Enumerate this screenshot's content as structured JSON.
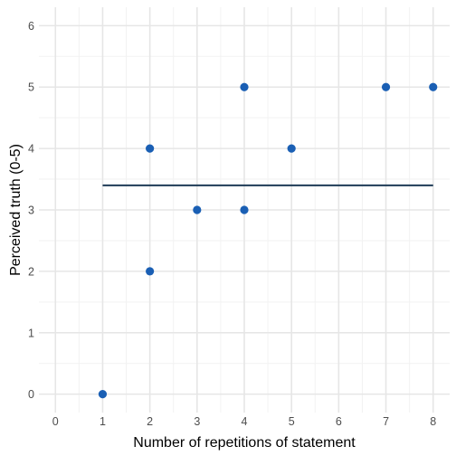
{
  "chart_data": {
    "type": "scatter",
    "xlabel": "Number of repetitions of statement",
    "ylabel": "Perceived truth (0-5)",
    "xlim": [
      -0.35,
      8.35
    ],
    "ylim": [
      -0.3,
      6.3
    ],
    "x_ticks": [
      0,
      1,
      2,
      3,
      4,
      5,
      6,
      7,
      8
    ],
    "y_ticks": [
      0,
      1,
      2,
      3,
      4,
      5,
      6
    ],
    "grid": true,
    "points": [
      {
        "x": 1,
        "y": 0
      },
      {
        "x": 2,
        "y": 2
      },
      {
        "x": 2,
        "y": 4
      },
      {
        "x": 3,
        "y": 3
      },
      {
        "x": 4,
        "y": 3
      },
      {
        "x": 4,
        "y": 5
      },
      {
        "x": 5,
        "y": 4
      },
      {
        "x": 7,
        "y": 5
      },
      {
        "x": 8,
        "y": 5
      }
    ],
    "reference_line": {
      "y": 3.4,
      "x_start": 1,
      "x_end": 8
    },
    "colors": {
      "point": "#1a5fb4",
      "reference_line": "#1f3c57",
      "grid_major": "#e6e6e6",
      "grid_minor": "#f2f2f2"
    }
  }
}
